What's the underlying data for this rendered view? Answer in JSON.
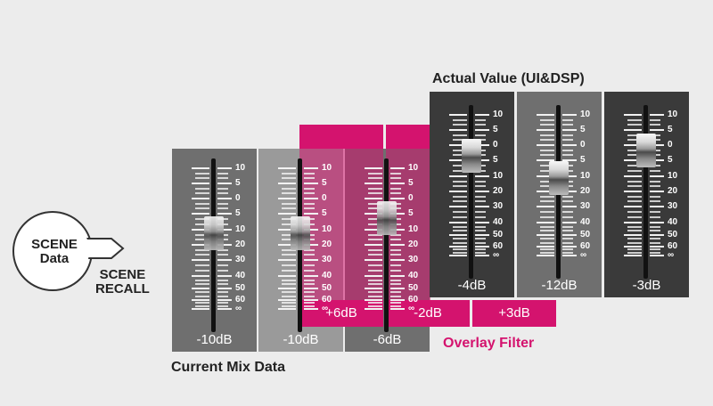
{
  "title_actual": "Actual Value (UI&DSP)",
  "title_current": "Current Mix Data",
  "overlay_filter_label": "Overlay Filter",
  "scene_badge": {
    "line1": "SCENE",
    "line2": "Data"
  },
  "scene_recall": {
    "line1": "SCENE",
    "line2": "RECALL"
  },
  "scale_labels": [
    "10",
    "5",
    "0",
    "5",
    "10",
    "20",
    "30",
    "40",
    "50",
    "60",
    "∞"
  ],
  "current_faders": [
    {
      "id": "c1",
      "value": "-10dB"
    },
    {
      "id": "c2",
      "value": "-10dB"
    },
    {
      "id": "c3",
      "value": "-6dB"
    }
  ],
  "overlay_offsets": [
    "+6dB",
    "-2dB",
    "+3dB"
  ],
  "actual_faders": [
    {
      "id": "a1",
      "value": "-4dB"
    },
    {
      "id": "a2",
      "value": "-12dB"
    },
    {
      "id": "a3",
      "value": "-3dB"
    }
  ],
  "colors": {
    "accent_pink": "#d4136e",
    "panel_dark": "#3a3a3a",
    "panel_mid": "#6f6f6f",
    "panel_light": "#9a9a9a"
  }
}
